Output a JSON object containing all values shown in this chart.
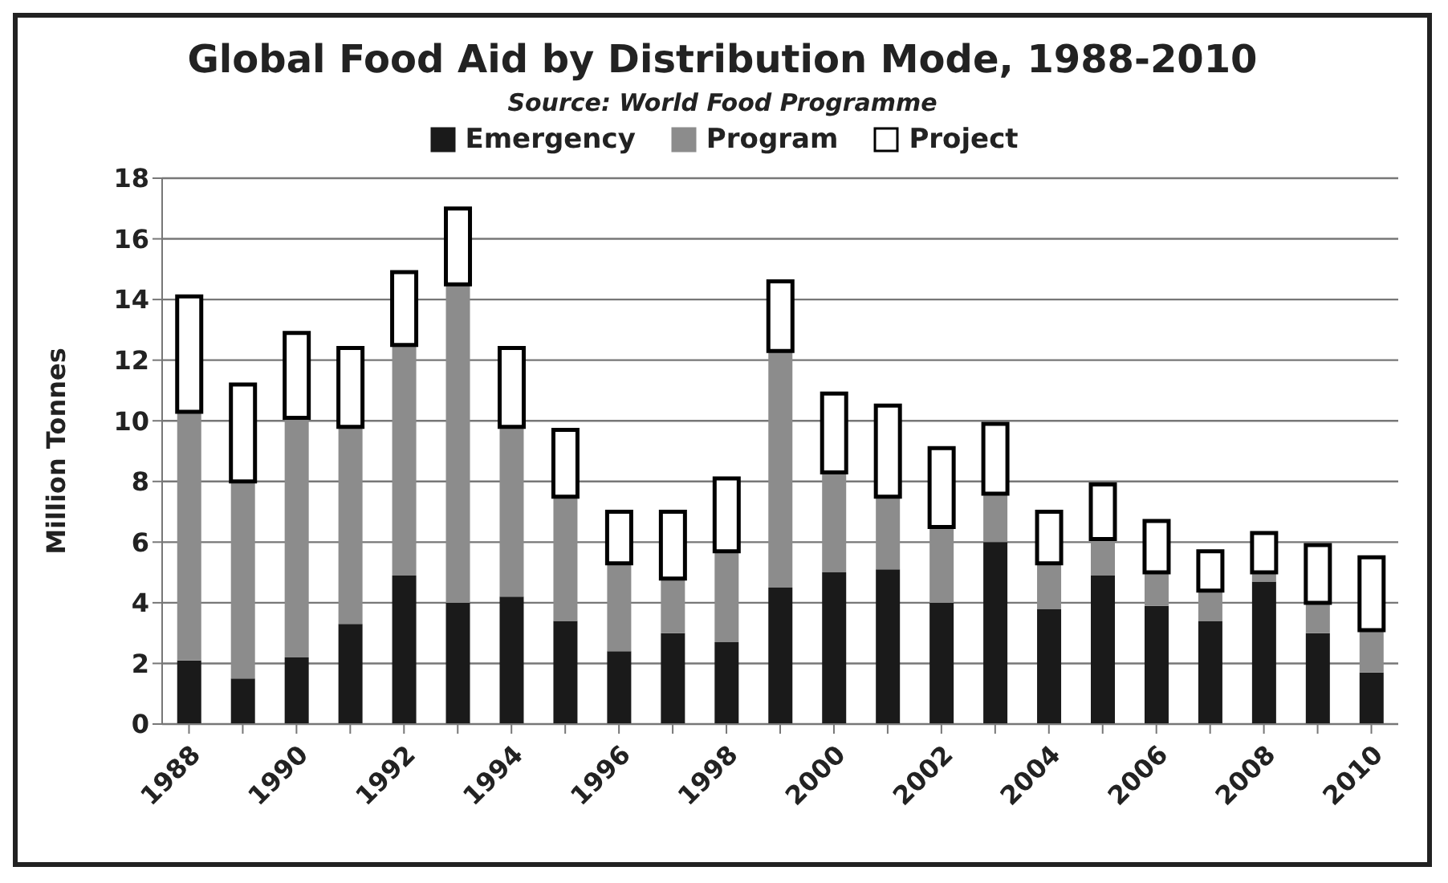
{
  "chart_data": {
    "type": "bar",
    "title": "Global Food Aid by Distribution Mode, 1988-2010",
    "subtitle": "Source: World Food Programme",
    "ylabel": "Million Tonnes",
    "categories": [
      "1988",
      null,
      "1990",
      null,
      "1992",
      null,
      "1994",
      null,
      "1996",
      null,
      "1998",
      null,
      "2000",
      null,
      "2002",
      null,
      "2004",
      null,
      "2006",
      null,
      "2008",
      null,
      "2010"
    ],
    "stacked": true,
    "ylim": [
      0,
      18
    ],
    "yticks": [
      0,
      2,
      4,
      6,
      8,
      10,
      12,
      14,
      16,
      18
    ],
    "grid": "y",
    "legend": "top",
    "series": [
      {
        "name": "Emergency",
        "color": "#1a1a1a",
        "values": [
          2.1,
          1.5,
          2.2,
          3.3,
          4.9,
          4.0,
          4.2,
          3.4,
          2.4,
          3.0,
          2.7,
          4.5,
          5.0,
          5.1,
          4.0,
          6.0,
          3.8,
          4.9,
          3.9,
          3.4,
          4.7,
          3.0,
          1.7
        ]
      },
      {
        "name": "Program",
        "color": "#8c8c8c",
        "values": [
          8.2,
          6.5,
          7.9,
          6.5,
          7.6,
          10.5,
          5.6,
          4.1,
          2.9,
          1.8,
          3.0,
          7.8,
          3.3,
          2.4,
          2.5,
          1.6,
          1.5,
          1.2,
          1.1,
          1.0,
          0.3,
          1.0,
          1.4
        ]
      },
      {
        "name": "Project",
        "color": "#ffffff",
        "values": [
          3.8,
          3.2,
          2.8,
          2.6,
          2.4,
          2.5,
          2.6,
          2.2,
          1.7,
          2.2,
          2.4,
          2.3,
          2.6,
          3.0,
          2.6,
          2.3,
          1.7,
          1.8,
          1.7,
          1.3,
          1.3,
          1.9,
          2.4
        ]
      }
    ]
  }
}
